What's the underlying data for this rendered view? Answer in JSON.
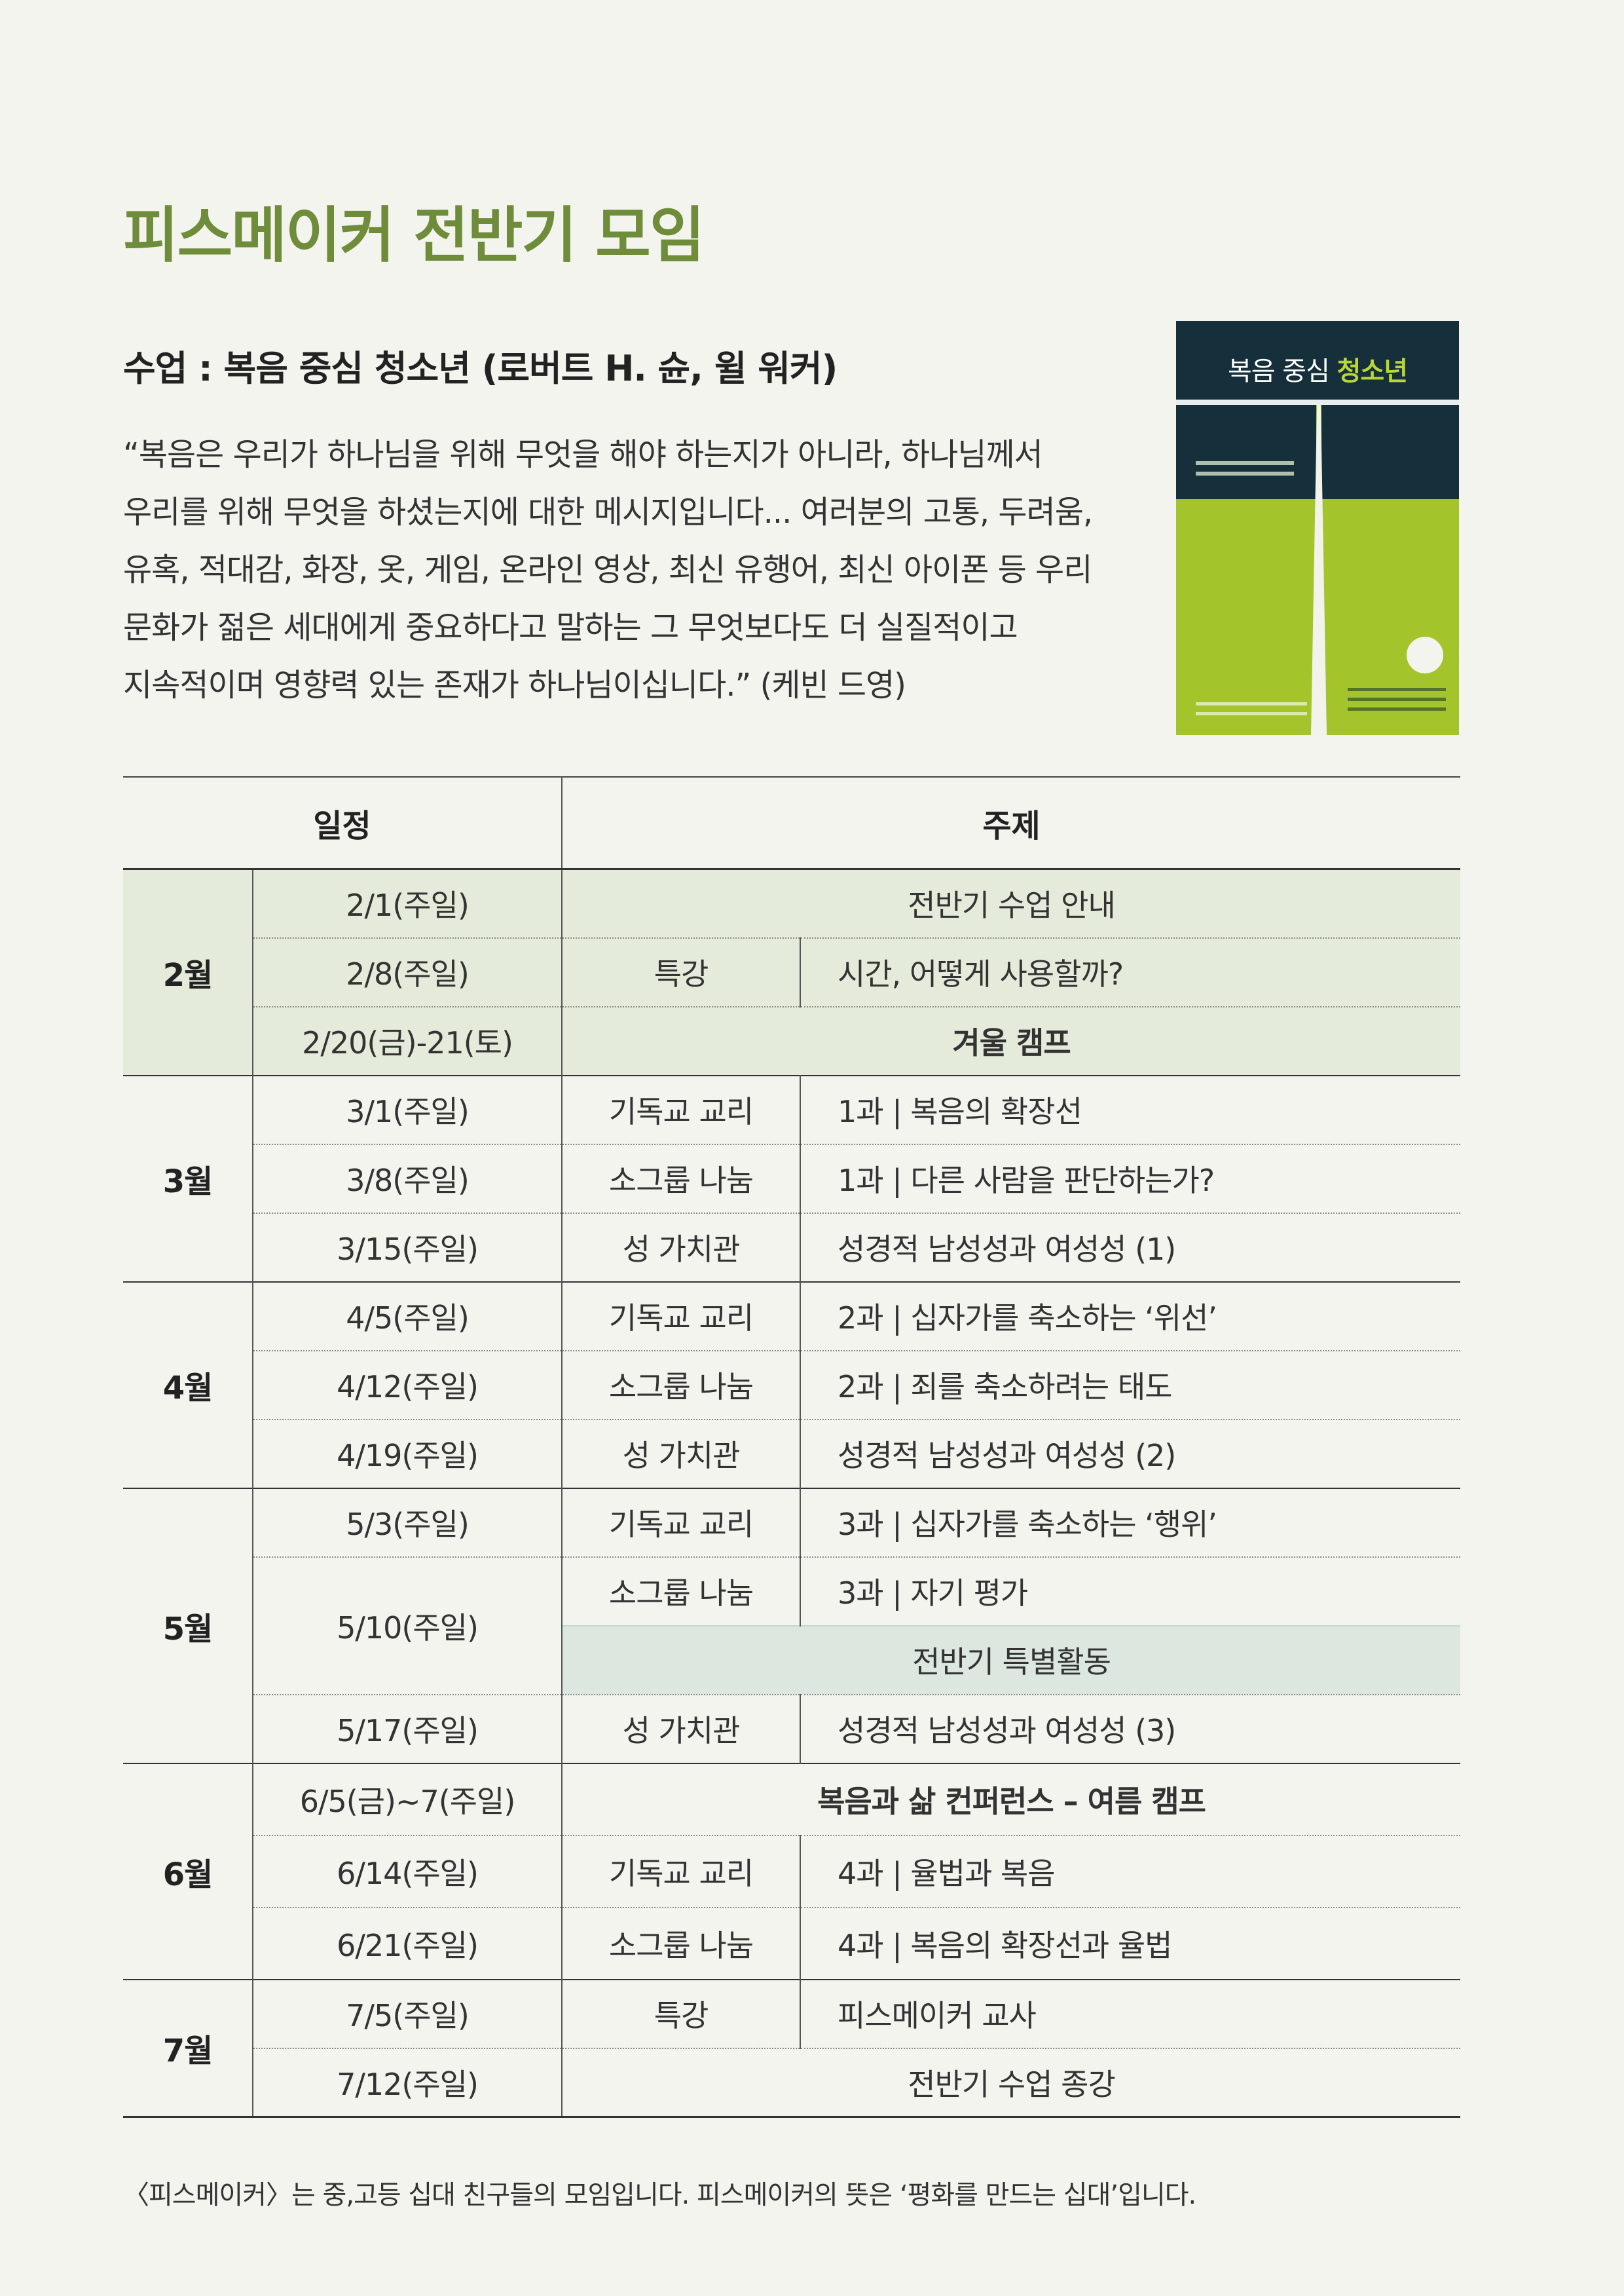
{
  "title": "피스메이커 전반기 모임",
  "subtitle": "수업 : 복음 중심 청소년 (로버트 H. 슌, 윌 워커)",
  "quote_lines": [
    "“복음은 우리가 하나님을 위해 무엇을 해야 하는지가 아니라, 하나님께서",
    "우리를 위해 무엇을 하셨는지에 대한 메시지입니다... 여러분의 고통, 두려움,",
    "유혹, 적대감, 화장, 옷, 게임, 온라인 영상, 최신 유행어, 최신 아이폰 등 우리",
    "문화가 젊은 세대에게 중요하다고 말하는 그 무엇보다도 더 실질적이고",
    "지속적이며 영향력 있는 존재가 하나님이십니다.” (케빈 드영)"
  ],
  "book_cover": {
    "title_prefix": "복음 중심",
    "title_highlight": "청소년",
    "colors": {
      "dark": "#15303a",
      "green": "#a3c42b"
    }
  },
  "table": {
    "headers": {
      "schedule": "일정",
      "topic": "주제"
    },
    "months": {
      "feb": "2월",
      "mar": "3월",
      "apr": "4월",
      "may": "5월",
      "jun": "6월",
      "jul": "7월"
    },
    "rows": {
      "feb1": {
        "date": "2/1(주일)",
        "topic": "전반기 수업 안내"
      },
      "feb8": {
        "date": "2/8(주일)",
        "category": "특강",
        "topic": "시간, 어떻게 사용할까?"
      },
      "feb20": {
        "date": "2/20(금)-21(토)",
        "topic": "겨울 캠프"
      },
      "mar1": {
        "date": "3/1(주일)",
        "category": "기독교 교리",
        "topic": "1과 | 복음의 확장선"
      },
      "mar8": {
        "date": "3/8(주일)",
        "category": "소그룹 나눔",
        "topic": "1과 | 다른 사람을 판단하는가?"
      },
      "mar15": {
        "date": "3/15(주일)",
        "category": "성 가치관",
        "topic": "성경적 남성성과 여성성 (1)"
      },
      "apr5": {
        "date": "4/5(주일)",
        "category": "기독교 교리",
        "topic": "2과 | 십자가를 축소하는 ‘위선’"
      },
      "apr12": {
        "date": "4/12(주일)",
        "category": "소그룹 나눔",
        "topic": "2과 | 죄를 축소하려는 태도"
      },
      "apr19": {
        "date": "4/19(주일)",
        "category": "성 가치관",
        "topic": "성경적 남성성과 여성성 (2)"
      },
      "may3": {
        "date": "5/3(주일)",
        "category": "기독교 교리",
        "topic": "3과 | 십자가를 축소하는 ‘행위’"
      },
      "may10": {
        "date": "5/10(주일)",
        "category": "소그룹 나눔",
        "topic": "3과 | 자기 평가",
        "special": "전반기 특별활동"
      },
      "may17": {
        "date": "5/17(주일)",
        "category": "성 가치관",
        "topic": "성경적 남성성과 여성성 (3)"
      },
      "jun5": {
        "date": "6/5(금)~7(주일)",
        "topic": "복음과 삶 컨퍼런스 – 여름 캠프"
      },
      "jun14": {
        "date": "6/14(주일)",
        "category": "기독교 교리",
        "topic": "4과 | 율법과 복음"
      },
      "jun21": {
        "date": "6/21(주일)",
        "category": "소그룹 나눔",
        "topic": "4과 | 복음의 확장선과 율법"
      },
      "jul5": {
        "date": "7/5(주일)",
        "category": "특강",
        "topic": "피스메이커 교사"
      },
      "jul12": {
        "date": "7/12(주일)",
        "topic": "전반기 수업 종강"
      }
    }
  },
  "footnote": "〈피스메이커〉는 중,고등 십대 친구들의 모임입니다. 피스메이커의 뜻은 ‘평화를 만드는 십대’입니다.",
  "colors": {
    "title_green": "#6e8c3a",
    "feb_band": "#e5ebda",
    "special_band": "#dbe7df"
  }
}
